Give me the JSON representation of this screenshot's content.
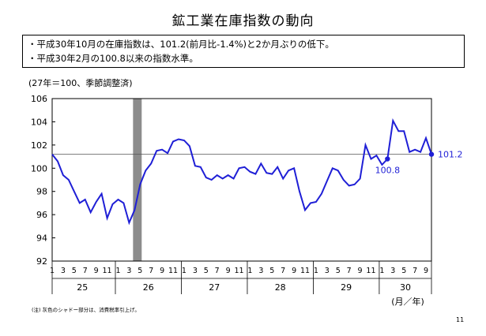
{
  "page": {
    "title": "鉱工業在庫指数の動向",
    "bullets": [
      "・平成30年10月の在庫指数は、101.2(前月比-1.4%)と2か月ぶりの低下。",
      "・平成30年2月の100.8以来の指数水準。"
    ],
    "unit_note": "(27年＝100、季節調整済)",
    "footnote": "(注) 灰色のシャドー部分は、消費税率引上げ。",
    "page_number": "11"
  },
  "chart_data": {
    "type": "line",
    "title": "",
    "xlabel": "(月／年)",
    "ylabel": "",
    "ylim": [
      92,
      106
    ],
    "yticks": [
      92,
      94,
      96,
      98,
      100,
      102,
      104,
      106
    ],
    "x_month_labels": [
      "1",
      "",
      "3",
      "",
      "5",
      "",
      "7",
      "",
      "9",
      "",
      "11",
      "",
      "1",
      "",
      "3",
      "",
      "5",
      "",
      "7",
      "",
      "9",
      "",
      "11",
      "",
      "1",
      "",
      "3",
      "",
      "5",
      "",
      "7",
      "",
      "9",
      "",
      "11",
      "",
      "1",
      "",
      "3",
      "",
      "5",
      "",
      "7",
      "",
      "9",
      "",
      "11",
      "",
      "1",
      "",
      "3",
      "",
      "5",
      "",
      "7",
      "",
      "9",
      "",
      "11",
      "",
      "1",
      "",
      "3",
      "",
      "5",
      "",
      "7",
      "",
      "9",
      ""
    ],
    "year_labels": [
      {
        "label": "25",
        "start": 0
      },
      {
        "label": "26",
        "start": 12
      },
      {
        "label": "27",
        "start": 24
      },
      {
        "label": "28",
        "start": 36
      },
      {
        "label": "29",
        "start": 48
      },
      {
        "label": "30",
        "start": 60
      }
    ],
    "series": [
      {
        "name": "",
        "color": "#1f1fd6",
        "values": [
          101.2,
          100.6,
          99.4,
          99.0,
          98.0,
          97.0,
          97.3,
          96.2,
          97.1,
          97.8,
          95.7,
          96.9,
          97.3,
          97.0,
          95.3,
          96.4,
          98.6,
          99.8,
          100.4,
          101.5,
          101.6,
          101.3,
          102.3,
          102.5,
          102.4,
          101.9,
          100.2,
          100.1,
          99.2,
          99.0,
          99.4,
          99.1,
          99.4,
          99.1,
          100.0,
          100.1,
          99.7,
          99.5,
          100.4,
          99.6,
          99.5,
          100.1,
          99.1,
          99.8,
          100.0,
          98.0,
          96.4,
          97.0,
          97.1,
          97.8,
          98.9,
          100.0,
          99.8,
          99.0,
          98.5,
          98.6,
          99.1,
          102.0,
          100.8,
          101.1,
          100.3,
          100.8,
          104.1,
          103.2,
          103.2,
          101.4,
          101.6,
          101.4,
          102.6,
          101.2
        ]
      }
    ],
    "reference_line": 101.2,
    "shaded_periods": [
      {
        "from": 15,
        "to": 16
      }
    ],
    "annotations": [
      {
        "index": 61,
        "label": "100.8"
      },
      {
        "index": 69,
        "label": "101.2"
      }
    ],
    "grid": false,
    "legend": "none"
  }
}
